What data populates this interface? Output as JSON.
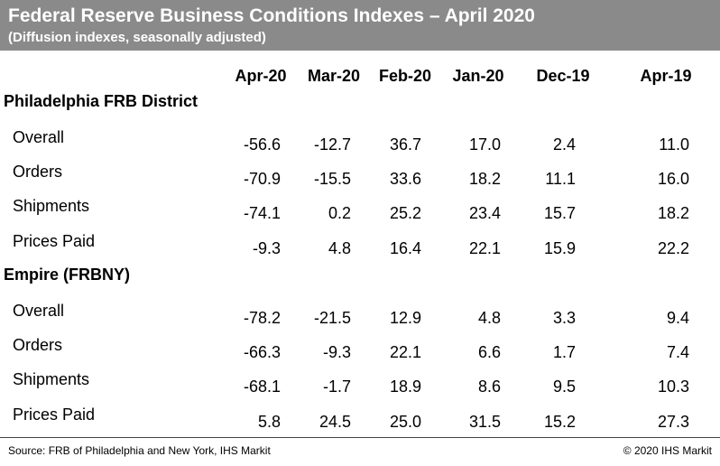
{
  "chart_data": {
    "type": "table",
    "title": "Federal Reserve Business Conditions Indexes – April 2020",
    "subtitle": "(Diffusion indexes, seasonally adjusted)",
    "columns": [
      "Apr-20",
      "Mar-20",
      "Feb-20",
      "Jan-20",
      "Dec-19",
      "Apr-19"
    ],
    "sections": [
      {
        "name": "Philadelphia FRB District",
        "rows": [
          {
            "label": "Overall",
            "values": [
              "-56.6",
              "-12.7",
              "36.7",
              "17.0",
              "2.4",
              "11.0"
            ]
          },
          {
            "label": "Orders",
            "values": [
              "-70.9",
              "-15.5",
              "33.6",
              "18.2",
              "11.1",
              "16.0"
            ]
          },
          {
            "label": "Shipments",
            "values": [
              "-74.1",
              "0.2",
              "25.2",
              "23.4",
              "15.7",
              "18.2"
            ]
          },
          {
            "label": "Prices Paid",
            "values": [
              "-9.3",
              "4.8",
              "16.4",
              "22.1",
              "15.9",
              "22.2"
            ]
          }
        ]
      },
      {
        "name": "Empire (FRBNY)",
        "rows": [
          {
            "label": "Overall",
            "values": [
              "-78.2",
              "-21.5",
              "12.9",
              "4.8",
              "3.3",
              "9.4"
            ]
          },
          {
            "label": "Orders",
            "values": [
              "-66.3",
              "-9.3",
              "22.1",
              "6.6",
              "1.7",
              "7.4"
            ]
          },
          {
            "label": "Shipments",
            "values": [
              "-68.1",
              "-1.7",
              "18.9",
              "8.6",
              "9.5",
              "10.3"
            ]
          },
          {
            "label": "Prices Paid",
            "values": [
              "5.8",
              "24.5",
              "25.0",
              "31.5",
              "15.2",
              "27.3"
            ]
          }
        ]
      }
    ]
  },
  "footer": {
    "source": "Source: FRB of Philadelphia and New York, IHS Markit",
    "copyright": "© 2020 IHS Markit"
  },
  "colors": {
    "title_bar": "#8a8a8a",
    "title_text": "#ffffff"
  }
}
